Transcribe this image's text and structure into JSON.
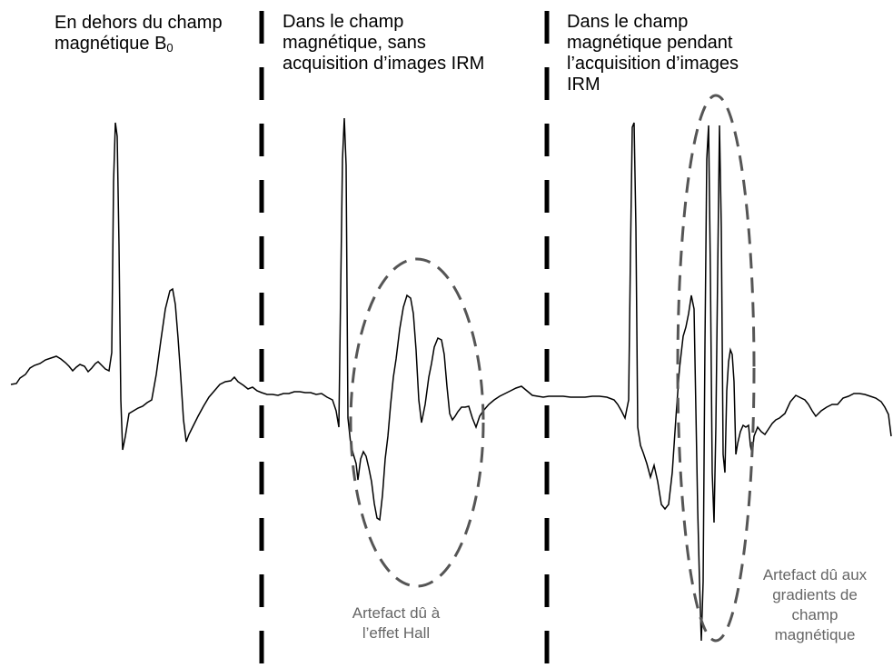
{
  "sections": [
    {
      "line1": "En dehors du champ",
      "line2_prefix": "magnétique B",
      "line2_sub": "0"
    },
    {
      "lines": [
        "Dans le champ",
        "magnétique, sans",
        "acquisition d’images IRM"
      ]
    },
    {
      "lines": [
        "Dans le champ",
        "magnétique pendant",
        "l’acquisition d’images",
        "IRM"
      ]
    }
  ],
  "annotations": [
    {
      "lines": [
        "Artefact dû à",
        "l’effet Hall"
      ]
    },
    {
      "lines": [
        "Artefact dû aux",
        "gradients de",
        "champ",
        "magnétique"
      ]
    }
  ],
  "colors": {
    "signal": "#000000",
    "separator": "#000000",
    "artifact_outline": "#555555",
    "annotation_text": "#666666"
  }
}
